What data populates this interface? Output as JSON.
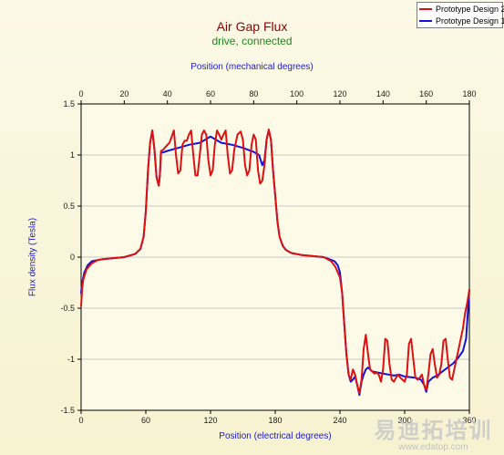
{
  "chart_data": {
    "type": "line",
    "title": "Air Gap Flux",
    "subtitle": "drive,  connected",
    "xlabel": "Position (electrical degrees)",
    "x2label": "Position (mechanical degrees)",
    "ylabel": "Flux density (Tesla)",
    "xlim": [
      0,
      360
    ],
    "x2lim": [
      0,
      180
    ],
    "ylim": [
      -1.5,
      1.5
    ],
    "xticks": [
      "0",
      "60",
      "120",
      "180",
      "240",
      "300",
      "360"
    ],
    "x2ticks": [
      "0",
      "20",
      "40",
      "60",
      "80",
      "100",
      "120",
      "140",
      "160",
      "180"
    ],
    "yticks": [
      "1.5",
      "1",
      "0.5",
      "0",
      "-0.5",
      "-1",
      "-1.5"
    ],
    "grid": true,
    "legend_position": "top-right",
    "series": [
      {
        "name": "Prototype Design 2",
        "color": "#dd1111",
        "points": [
          [
            0,
            -0.48
          ],
          [
            1,
            -0.3
          ],
          [
            2,
            -0.22
          ],
          [
            5,
            -0.12
          ],
          [
            10,
            -0.06
          ],
          [
            15,
            -0.03
          ],
          [
            20,
            -0.02
          ],
          [
            30,
            -0.01
          ],
          [
            40,
            0
          ],
          [
            50,
            0.03
          ],
          [
            55,
            0.08
          ],
          [
            58,
            0.2
          ],
          [
            60,
            0.45
          ],
          [
            62,
            0.85
          ],
          [
            64,
            1.12
          ],
          [
            66,
            1.24
          ],
          [
            68,
            1.05
          ],
          [
            70,
            0.78
          ],
          [
            72,
            0.7
          ],
          [
            73,
            0.8
          ],
          [
            74,
            1.04
          ],
          [
            76,
            1.05
          ],
          [
            80,
            1.1
          ],
          [
            82,
            1.12
          ],
          [
            84,
            1.18
          ],
          [
            86,
            1.24
          ],
          [
            88,
            1.0
          ],
          [
            90,
            0.82
          ],
          [
            92,
            0.85
          ],
          [
            94,
            1.1
          ],
          [
            96,
            1.14
          ],
          [
            98,
            1.14
          ],
          [
            100,
            1.2
          ],
          [
            102,
            1.24
          ],
          [
            104,
            1.0
          ],
          [
            106,
            0.8
          ],
          [
            108,
            0.8
          ],
          [
            110,
            1.0
          ],
          [
            112,
            1.2
          ],
          [
            114,
            1.24
          ],
          [
            116,
            1.2
          ],
          [
            118,
            0.95
          ],
          [
            120,
            0.8
          ],
          [
            122,
            0.85
          ],
          [
            124,
            1.1
          ],
          [
            126,
            1.24
          ],
          [
            128,
            1.2
          ],
          [
            130,
            1.15
          ],
          [
            132,
            1.2
          ],
          [
            134,
            1.24
          ],
          [
            136,
            1.0
          ],
          [
            138,
            0.82
          ],
          [
            140,
            0.85
          ],
          [
            142,
            1.05
          ],
          [
            145,
            1.2
          ],
          [
            148,
            1.23
          ],
          [
            150,
            1.15
          ],
          [
            152,
            0.9
          ],
          [
            154,
            0.8
          ],
          [
            156,
            0.85
          ],
          [
            158,
            1.1
          ],
          [
            160,
            1.2
          ],
          [
            162,
            1.15
          ],
          [
            164,
            0.85
          ],
          [
            166,
            0.72
          ],
          [
            168,
            0.75
          ],
          [
            170,
            0.9
          ],
          [
            172,
            1.15
          ],
          [
            174,
            1.25
          ],
          [
            176,
            1.15
          ],
          [
            178,
            0.85
          ],
          [
            180,
            0.6
          ],
          [
            182,
            0.35
          ],
          [
            184,
            0.2
          ],
          [
            187,
            0.11
          ],
          [
            190,
            0.07
          ],
          [
            195,
            0.04
          ],
          [
            205,
            0.02
          ],
          [
            215,
            0.01
          ],
          [
            225,
            0
          ],
          [
            232,
            -0.04
          ],
          [
            236,
            -0.1
          ],
          [
            238,
            -0.15
          ],
          [
            240,
            -0.2
          ],
          [
            242,
            -0.35
          ],
          [
            244,
            -0.65
          ],
          [
            246,
            -0.95
          ],
          [
            248,
            -1.15
          ],
          [
            250,
            -1.2
          ],
          [
            252,
            -1.1
          ],
          [
            254,
            -1.15
          ],
          [
            256,
            -1.25
          ],
          [
            258,
            -1.33
          ],
          [
            260,
            -1.2
          ],
          [
            262,
            -0.9
          ],
          [
            264,
            -0.76
          ],
          [
            266,
            -0.95
          ],
          [
            268,
            -1.1
          ],
          [
            270,
            -1.12
          ],
          [
            272,
            -1.14
          ],
          [
            274,
            -1.13
          ],
          [
            276,
            -1.15
          ],
          [
            278,
            -1.22
          ],
          [
            280,
            -1.1
          ],
          [
            282,
            -0.8
          ],
          [
            284,
            -0.82
          ],
          [
            286,
            -1.05
          ],
          [
            288,
            -1.2
          ],
          [
            290,
            -1.22
          ],
          [
            292,
            -1.18
          ],
          [
            294,
            -1.15
          ],
          [
            296,
            -1.18
          ],
          [
            298,
            -1.2
          ],
          [
            300,
            -1.22
          ],
          [
            302,
            -1.15
          ],
          [
            304,
            -0.85
          ],
          [
            306,
            -0.8
          ],
          [
            308,
            -1.0
          ],
          [
            310,
            -1.18
          ],
          [
            312,
            -1.2
          ],
          [
            314,
            -1.18
          ],
          [
            316,
            -1.15
          ],
          [
            318,
            -1.25
          ],
          [
            320,
            -1.3
          ],
          [
            322,
            -1.15
          ],
          [
            324,
            -0.95
          ],
          [
            326,
            -0.9
          ],
          [
            328,
            -1.05
          ],
          [
            330,
            -1.18
          ],
          [
            332,
            -1.15
          ],
          [
            334,
            -1.05
          ],
          [
            336,
            -0.82
          ],
          [
            338,
            -0.8
          ],
          [
            340,
            -1.0
          ],
          [
            342,
            -1.18
          ],
          [
            344,
            -1.2
          ],
          [
            346,
            -1.1
          ],
          [
            348,
            -1.0
          ],
          [
            350,
            -0.9
          ],
          [
            352,
            -0.8
          ],
          [
            354,
            -0.7
          ],
          [
            356,
            -0.55
          ],
          [
            358,
            -0.45
          ],
          [
            360,
            -0.32
          ]
        ]
      },
      {
        "name": "Prototype Design 1",
        "color": "#1111dd",
        "points": [
          [
            0,
            -0.35
          ],
          [
            1,
            -0.25
          ],
          [
            3,
            -0.15
          ],
          [
            6,
            -0.08
          ],
          [
            10,
            -0.04
          ],
          [
            20,
            -0.02
          ],
          [
            30,
            -0.01
          ],
          [
            40,
            0
          ],
          [
            50,
            0.03
          ],
          [
            55,
            0.08
          ],
          [
            58,
            0.2
          ],
          [
            60,
            0.45
          ],
          [
            62,
            0.85
          ],
          [
            64,
            1.12
          ],
          [
            66,
            1.24
          ],
          [
            68,
            1.05
          ],
          [
            70,
            0.78
          ],
          [
            72,
            0.7
          ],
          [
            73,
            0.8
          ],
          [
            74,
            1.02
          ],
          [
            80,
            1.04
          ],
          [
            90,
            1.07
          ],
          [
            100,
            1.1
          ],
          [
            110,
            1.12
          ],
          [
            115,
            1.15
          ],
          [
            120,
            1.18
          ],
          [
            125,
            1.15
          ],
          [
            130,
            1.12
          ],
          [
            140,
            1.1
          ],
          [
            150,
            1.07
          ],
          [
            160,
            1.03
          ],
          [
            165,
            1.0
          ],
          [
            168,
            0.9
          ],
          [
            170,
            0.95
          ],
          [
            172,
            1.15
          ],
          [
            174,
            1.24
          ],
          [
            176,
            1.15
          ],
          [
            178,
            0.85
          ],
          [
            180,
            0.6
          ],
          [
            182,
            0.35
          ],
          [
            184,
            0.2
          ],
          [
            187,
            0.11
          ],
          [
            190,
            0.07
          ],
          [
            195,
            0.04
          ],
          [
            205,
            0.02
          ],
          [
            215,
            0.01
          ],
          [
            225,
            0
          ],
          [
            230,
            -0.02
          ],
          [
            235,
            -0.04
          ],
          [
            238,
            -0.08
          ],
          [
            240,
            -0.15
          ],
          [
            242,
            -0.35
          ],
          [
            244,
            -0.65
          ],
          [
            246,
            -0.95
          ],
          [
            248,
            -1.15
          ],
          [
            250,
            -1.22
          ],
          [
            252,
            -1.2
          ],
          [
            254,
            -1.17
          ],
          [
            256,
            -1.25
          ],
          [
            258,
            -1.35
          ],
          [
            260,
            -1.22
          ],
          [
            262,
            -1.15
          ],
          [
            264,
            -1.1
          ],
          [
            266,
            -1.08
          ],
          [
            268,
            -1.1
          ],
          [
            270,
            -1.12
          ],
          [
            280,
            -1.14
          ],
          [
            290,
            -1.16
          ],
          [
            295,
            -1.15
          ],
          [
            300,
            -1.17
          ],
          [
            310,
            -1.18
          ],
          [
            315,
            -1.2
          ],
          [
            318,
            -1.25
          ],
          [
            320,
            -1.32
          ],
          [
            322,
            -1.22
          ],
          [
            326,
            -1.18
          ],
          [
            330,
            -1.16
          ],
          [
            335,
            -1.12
          ],
          [
            340,
            -1.08
          ],
          [
            345,
            -1.04
          ],
          [
            350,
            -0.98
          ],
          [
            354,
            -0.92
          ],
          [
            357,
            -0.8
          ],
          [
            360,
            -0.32
          ]
        ]
      }
    ]
  },
  "watermark": {
    "cn": "易迪拓培训",
    "url": "www.edatop.com"
  }
}
